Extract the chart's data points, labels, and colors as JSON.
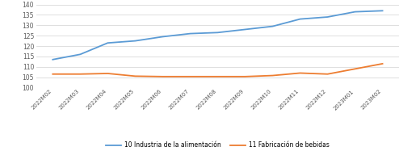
{
  "x_labels": [
    "2022M02",
    "2022M03",
    "2022M04",
    "2022M05",
    "2022M06",
    "2022M07",
    "2022M08",
    "2022M09",
    "2022M10",
    "2022M11",
    "2022M12",
    "2023M01",
    "2023M02"
  ],
  "alimentacion": [
    113.5,
    116.0,
    121.5,
    122.5,
    124.5,
    126.0,
    126.5,
    128.0,
    129.5,
    133.0,
    134.0,
    136.5,
    137.0
  ],
  "bebidas": [
    106.5,
    106.5,
    106.8,
    105.5,
    105.3,
    105.3,
    105.3,
    105.3,
    105.8,
    107.0,
    106.5,
    109.0,
    111.5
  ],
  "color_alimentacion": "#5B9BD5",
  "color_bebidas": "#ED7D31",
  "legend_alimentacion": "10 Industria de la alimentación",
  "legend_bebidas": "11 Fabricación de bebidas",
  "ylim": [
    100,
    140
  ],
  "yticks": [
    100,
    105,
    110,
    115,
    120,
    125,
    130,
    135,
    140
  ],
  "background_color": "#ffffff",
  "grid_color": "#d9d9d9"
}
